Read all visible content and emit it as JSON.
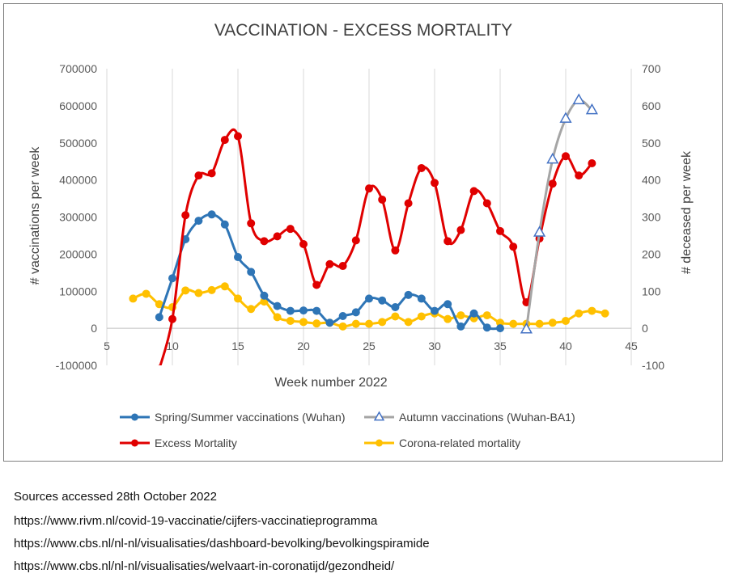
{
  "chart_data": {
    "type": "line",
    "title": "VACCINATION - EXCESS MORTALITY",
    "xlabel": "Week number 2022",
    "ylabel_left": "# vaccinations per week",
    "ylabel_right": "# deceased per week",
    "xlim": [
      5,
      45
    ],
    "ylim_left": [
      -100000,
      700000
    ],
    "ylim_right": [
      -100,
      700
    ],
    "x_ticks": [
      5,
      10,
      15,
      20,
      25,
      30,
      35,
      40,
      45
    ],
    "y_ticks_left": [
      -100000,
      0,
      100000,
      200000,
      300000,
      400000,
      500000,
      600000,
      700000
    ],
    "y_ticks_right": [
      -100,
      0,
      100,
      200,
      300,
      400,
      500,
      600,
      700
    ],
    "grid": "vertical",
    "legend_position": "bottom",
    "series": [
      {
        "name": "Spring/Summer vaccinations (Wuhan)",
        "axis": "left",
        "color": "#2e75b6",
        "marker": "circle",
        "x": [
          9,
          10,
          11,
          12,
          13,
          14,
          15,
          16,
          17,
          18,
          19,
          20,
          21,
          22,
          23,
          24,
          25,
          26,
          27,
          28,
          29,
          30,
          31,
          32,
          33,
          34,
          35
        ],
        "y": [
          30000,
          135000,
          240000,
          290000,
          307000,
          280000,
          192000,
          152000,
          88000,
          60000,
          47000,
          48000,
          47000,
          15000,
          33000,
          43000,
          80000,
          75000,
          57000,
          90000,
          80000,
          47000,
          65000,
          5000,
          40000,
          2000,
          0
        ]
      },
      {
        "name": "Autumn vaccinations (Wuhan-BA1)",
        "axis": "left",
        "color": "#a5a5a5",
        "marker": "triangle",
        "marker_color": "#4472c4",
        "x": [
          37,
          38,
          39,
          40,
          41,
          42
        ],
        "y": [
          -3000,
          258000,
          455000,
          565000,
          615000,
          588000
        ]
      },
      {
        "name": "Excess Mortality",
        "axis": "right",
        "color": "#e00000",
        "marker": "circle",
        "x": [
          9,
          10,
          11,
          12,
          13,
          14,
          15,
          16,
          17,
          18,
          19,
          20,
          21,
          22,
          23,
          24,
          25,
          26,
          27,
          28,
          29,
          30,
          31,
          32,
          33,
          34,
          35,
          36,
          37,
          38,
          39,
          40,
          41,
          42
        ],
        "y": [
          -110,
          25,
          305,
          412,
          418,
          508,
          518,
          283,
          235,
          248,
          268,
          227,
          117,
          173,
          168,
          237,
          377,
          347,
          210,
          337,
          432,
          392,
          235,
          265,
          370,
          337,
          262,
          220,
          70,
          242,
          390,
          464,
          412,
          445
        ]
      },
      {
        "name": "Corona-related mortality",
        "axis": "right",
        "color": "#ffc000",
        "marker": "circle",
        "x": [
          7,
          8,
          9,
          10,
          11,
          12,
          13,
          14,
          15,
          16,
          17,
          18,
          19,
          20,
          21,
          22,
          23,
          24,
          25,
          26,
          27,
          28,
          29,
          30,
          31,
          32,
          33,
          34,
          35,
          36,
          37,
          38,
          39,
          40,
          41,
          42,
          43
        ],
        "y": [
          80,
          93,
          65,
          57,
          102,
          95,
          103,
          113,
          80,
          52,
          72,
          30,
          20,
          17,
          13,
          15,
          5,
          12,
          12,
          17,
          32,
          17,
          32,
          40,
          25,
          35,
          27,
          35,
          15,
          12,
          12,
          12,
          15,
          20,
          40,
          47,
          40
        ]
      }
    ]
  },
  "sources": {
    "heading": "Sources accessed 28th  October 2022",
    "links": [
      "https://www.rivm.nl/covid-19-vaccinatie/cijfers-vaccinatieprogramma",
      "https://www.cbs.nl/nl-nl/visualisaties/dashboard-bevolking/bevolkingspiramide",
      "https://www.cbs.nl/nl-nl/visualisaties/welvaart-in-coronatijd/gezondheid/"
    ]
  }
}
